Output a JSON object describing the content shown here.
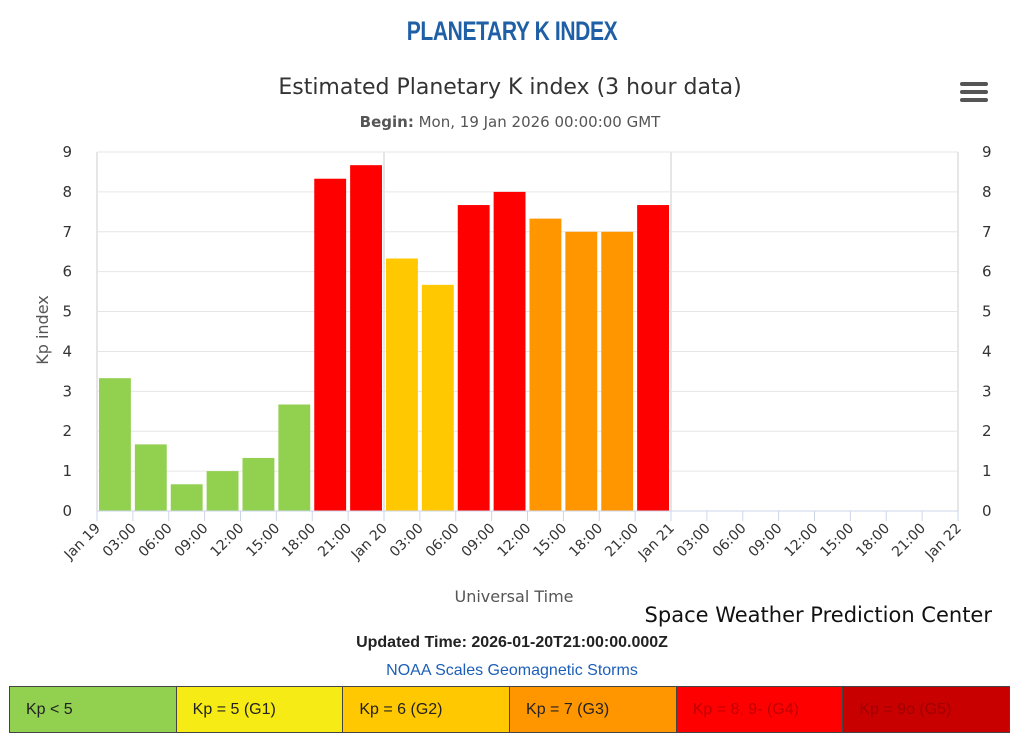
{
  "page": {
    "banner": "PLANETARY K INDEX",
    "menu_icon": "hamburger-menu-icon",
    "updated": "Updated Time: 2026-01-20T21:00:00.000Z",
    "scales_link": "NOAA Scales Geomagnetic Storms"
  },
  "legend": [
    {
      "label": "Kp < 5",
      "color": "#92d050",
      "text_color": "#222222"
    },
    {
      "label": "Kp = 5 (G1)",
      "color": "#f6eb14",
      "text_color": "#222222"
    },
    {
      "label": "Kp = 6 (G2)",
      "color": "#ffc800",
      "text_color": "#222222"
    },
    {
      "label": "Kp = 7 (G3)",
      "color": "#ff9600",
      "text_color": "#222222"
    },
    {
      "label": "Kp = 8, 9- (G4)",
      "color": "#ff0000",
      "text_color": "#c00000"
    },
    {
      "label": "Kp = 9o (G5)",
      "color": "#c80000",
      "text_color": "#a00000"
    }
  ],
  "chart_data": {
    "type": "bar",
    "title": "Estimated Planetary K index (3 hour data)",
    "subtitle_label": "Begin:",
    "subtitle_value": " Mon, 19 Jan 2026 00:00:00 GMT",
    "xlabel": "Universal Time",
    "ylabel": "Kp index",
    "credit": "Space Weather Prediction Center",
    "ylim": [
      0,
      9
    ],
    "yticks": [
      "0",
      "1",
      "2",
      "3",
      "4",
      "5",
      "6",
      "7",
      "8",
      "9"
    ],
    "x_tick_labels": [
      "Jan 19",
      "03:00",
      "06:00",
      "09:00",
      "12:00",
      "15:00",
      "18:00",
      "21:00",
      "Jan 20",
      "03:00",
      "06:00",
      "09:00",
      "12:00",
      "15:00",
      "18:00",
      "21:00",
      "Jan 21",
      "03:00",
      "06:00",
      "09:00",
      "12:00",
      "15:00",
      "18:00",
      "21:00",
      "Jan 22"
    ],
    "values": [
      3.33,
      1.67,
      0.67,
      1.0,
      1.33,
      2.67,
      8.33,
      8.67,
      6.33,
      5.67,
      7.67,
      8.0,
      7.33,
      7.0,
      7.0,
      7.67
    ],
    "colors": {
      "quiet": "#92d050",
      "g1": "#f6eb14",
      "g2": "#ffc800",
      "g3": "#ff9600",
      "g4": "#ff0000",
      "g5": "#c80000",
      "grid": "#e6e6e6",
      "axis": "#ccd6eb",
      "text": "#333333"
    }
  }
}
